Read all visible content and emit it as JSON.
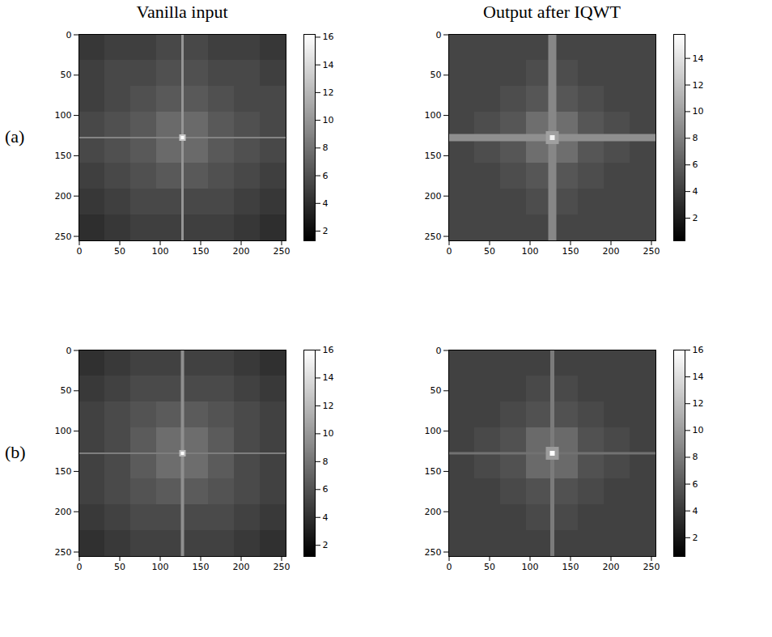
{
  "figure": {
    "column_titles": [
      "Vanilla input",
      "Output after IQWT"
    ],
    "row_labels": [
      "(a)",
      "(b)"
    ]
  },
  "chart_data": [
    {
      "type": "heatmap",
      "row": 0,
      "column": 0,
      "xlim": [
        -0.5,
        255.5
      ],
      "ylim": [
        255.5,
        -0.5
      ],
      "xticks": [
        0,
        50,
        100,
        150,
        200,
        250
      ],
      "yticks": [
        0,
        50,
        100,
        150,
        200,
        250
      ],
      "cells": [
        [
          4.5,
          5,
          5,
          5.5,
          5.5,
          5,
          5,
          4.5
        ],
        [
          5,
          5.5,
          5.5,
          6,
          6,
          5.5,
          5.5,
          5
        ],
        [
          5,
          5.5,
          6,
          6.5,
          6.5,
          6,
          5.5,
          5.5
        ],
        [
          5.5,
          6,
          6.5,
          7.5,
          7.5,
          6.5,
          6,
          5.5
        ],
        [
          5.5,
          6,
          6.5,
          7.5,
          7.5,
          6.5,
          6,
          5.5
        ],
        [
          5,
          5.5,
          6,
          6.5,
          6.5,
          6,
          5.5,
          5
        ],
        [
          4.5,
          5,
          5.5,
          5.5,
          5.5,
          5.5,
          5,
          4.5
        ],
        [
          4,
          4.5,
          5,
          5,
          5,
          5,
          4.5,
          4
        ]
      ],
      "features": [
        {
          "x1": 126.5,
          "x2": 129.5,
          "y1": -0.5,
          "y2": 255.5,
          "value": 10
        },
        {
          "x1": -0.5,
          "x2": 255.5,
          "y1": 127,
          "y2": 129,
          "value": 9
        },
        {
          "x1": 124,
          "x2": 132,
          "y1": 124,
          "y2": 132,
          "value": 13
        },
        {
          "x1": 126,
          "x2": 130,
          "y1": 126,
          "y2": 130,
          "value": 16
        }
      ],
      "colorbar_lim": [
        1.3,
        16.2
      ],
      "colorbar_ticks": [
        2,
        4,
        6,
        8,
        10,
        12,
        14,
        16
      ]
    },
    {
      "type": "heatmap",
      "row": 0,
      "column": 1,
      "xlim": [
        -0.5,
        255.5
      ],
      "ylim": [
        255.5,
        -0.5
      ],
      "xticks": [
        0,
        50,
        100,
        150,
        200,
        250
      ],
      "yticks": [
        0,
        50,
        100,
        150,
        200,
        250
      ],
      "cells": [
        [
          4.5,
          4.5,
          4.5,
          4.5,
          4.5,
          4.5,
          4.5,
          4.5
        ],
        [
          4.5,
          4.5,
          4.5,
          5,
          5,
          4.5,
          4.5,
          4.5
        ],
        [
          4.5,
          4.5,
          5,
          5.5,
          5.5,
          5,
          4.5,
          4.5
        ],
        [
          4.5,
          5,
          5.5,
          7,
          7,
          5.5,
          5,
          4.5
        ],
        [
          4.5,
          5,
          5.5,
          7,
          7,
          5.5,
          5,
          4.5
        ],
        [
          4.5,
          4.5,
          5,
          5.5,
          5.5,
          5,
          4.5,
          4.5
        ],
        [
          4.5,
          4.5,
          4.5,
          5,
          5,
          4.5,
          4.5,
          4.5
        ],
        [
          4.5,
          4.5,
          4.5,
          4.5,
          4.5,
          4.5,
          4.5,
          4.5
        ]
      ],
      "features": [
        {
          "x1": 123,
          "x2": 133,
          "y1": -0.5,
          "y2": 255.5,
          "value": 8.5
        },
        {
          "x1": -0.5,
          "x2": 255.5,
          "y1": 123.5,
          "y2": 132.5,
          "value": 9
        },
        {
          "x1": 120,
          "x2": 136,
          "y1": 120,
          "y2": 136,
          "value": 10
        },
        {
          "x1": 125,
          "x2": 131,
          "y1": 125,
          "y2": 131,
          "value": 15
        }
      ],
      "colorbar_lim": [
        0.3,
        15.8
      ],
      "colorbar_ticks": [
        2,
        4,
        6,
        8,
        10,
        12,
        14
      ]
    },
    {
      "type": "heatmap",
      "row": 1,
      "column": 0,
      "xlim": [
        -0.5,
        255.5
      ],
      "ylim": [
        255.5,
        -0.5
      ],
      "xticks": [
        0,
        50,
        100,
        150,
        200,
        250
      ],
      "yticks": [
        0,
        50,
        100,
        150,
        200,
        250
      ],
      "cells": [
        [
          4,
          4.5,
          5,
          5,
          5,
          5,
          4.5,
          4
        ],
        [
          4.5,
          5,
          5.5,
          5.5,
          5.5,
          5.5,
          5,
          4.5
        ],
        [
          5,
          5.5,
          6,
          6.5,
          6.5,
          6,
          5.5,
          5
        ],
        [
          5,
          5.5,
          6.5,
          7.5,
          7.5,
          6.5,
          5.5,
          5
        ],
        [
          5,
          5.5,
          6.5,
          7.5,
          7.5,
          6.5,
          5.5,
          5
        ],
        [
          5,
          5.5,
          6,
          6.5,
          6.5,
          6,
          5.5,
          5
        ],
        [
          4.5,
          5,
          5.5,
          5.5,
          5.5,
          5.5,
          5,
          4.5
        ],
        [
          4,
          4.5,
          5,
          5,
          5,
          5,
          4.5,
          4
        ]
      ],
      "features": [
        {
          "x1": 126,
          "x2": 130,
          "y1": -0.5,
          "y2": 255.5,
          "value": 9.5
        },
        {
          "x1": -0.5,
          "x2": 255.5,
          "y1": 127,
          "y2": 129,
          "value": 8.5
        },
        {
          "x1": 124,
          "x2": 132,
          "y1": 124,
          "y2": 132,
          "value": 12
        },
        {
          "x1": 126,
          "x2": 130,
          "y1": 126,
          "y2": 130,
          "value": 16
        }
      ],
      "colorbar_lim": [
        1.2,
        16
      ],
      "colorbar_ticks": [
        2,
        4,
        6,
        8,
        10,
        12,
        14,
        16
      ]
    },
    {
      "type": "heatmap",
      "row": 1,
      "column": 1,
      "xlim": [
        -0.5,
        255.5
      ],
      "ylim": [
        255.5,
        -0.5
      ],
      "xticks": [
        0,
        50,
        100,
        150,
        200,
        250
      ],
      "yticks": [
        0,
        50,
        100,
        150,
        200,
        250
      ],
      "cells": [
        [
          4.5,
          4.5,
          4.5,
          4.5,
          4.5,
          4.5,
          4.5,
          4.5
        ],
        [
          4.5,
          4.5,
          4.5,
          5,
          5,
          4.5,
          4.5,
          4.5
        ],
        [
          4.5,
          4.5,
          5,
          5.5,
          5.5,
          5,
          4.5,
          4.5
        ],
        [
          4.5,
          5,
          5.5,
          7,
          7,
          5.5,
          5,
          4.5
        ],
        [
          4.5,
          5,
          5.5,
          7,
          7,
          5.5,
          5,
          4.5
        ],
        [
          4.5,
          4.5,
          5,
          5.5,
          5.5,
          5,
          4.5,
          4.5
        ],
        [
          4.5,
          4.5,
          4.5,
          5,
          5,
          4.5,
          4.5,
          4.5
        ],
        [
          4.5,
          4.5,
          4.5,
          4.5,
          4.5,
          4.5,
          4.5,
          4.5
        ]
      ],
      "features": [
        {
          "x1": 125.5,
          "x2": 130.5,
          "y1": -0.5,
          "y2": 255.5,
          "value": 8
        },
        {
          "x1": -0.5,
          "x2": 255.5,
          "y1": 126.5,
          "y2": 129.5,
          "value": 7.5
        },
        {
          "x1": 120,
          "x2": 136,
          "y1": 120,
          "y2": 136,
          "value": 10
        },
        {
          "x1": 125,
          "x2": 131,
          "y1": 125,
          "y2": 131,
          "value": 16
        }
      ],
      "colorbar_lim": [
        0.6,
        16
      ],
      "colorbar_ticks": [
        2,
        4,
        6,
        8,
        10,
        12,
        14,
        16
      ]
    }
  ]
}
